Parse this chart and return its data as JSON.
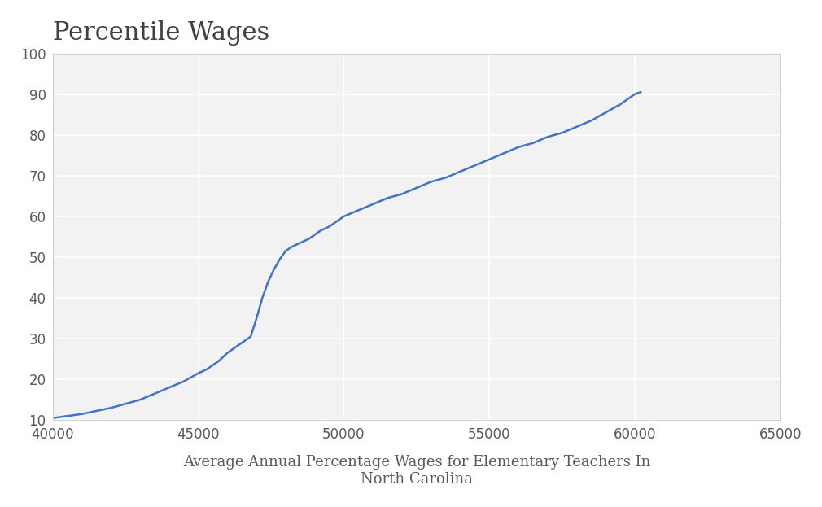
{
  "title": "Percentile Wages",
  "xlabel": "Average Annual Percentage Wages for Elementary Teachers In\nNorth Carolina",
  "ylabel": "",
  "xlim": [
    40000,
    65000
  ],
  "ylim": [
    10,
    100
  ],
  "xticks": [
    40000,
    45000,
    50000,
    55000,
    60000,
    65000
  ],
  "yticks": [
    10,
    20,
    30,
    40,
    50,
    60,
    70,
    80,
    90,
    100
  ],
  "line_color": "#4472c4",
  "plot_background_color": "#f2f2f2",
  "outer_background": "#ffffff",
  "grid_color": "#ffffff",
  "title_fontsize": 22,
  "xlabel_fontsize": 13,
  "tick_fontsize": 12,
  "line_width": 1.8,
  "x_data": [
    40000,
    41000,
    42000,
    43000,
    44000,
    44500,
    45000,
    45300,
    45500,
    45700,
    46000,
    46200,
    46400,
    46600,
    46800,
    47000,
    47200,
    47400,
    47600,
    47800,
    48000,
    48200,
    48500,
    48800,
    49000,
    49200,
    49500,
    50000,
    50500,
    51000,
    51500,
    52000,
    52500,
    53000,
    53500,
    54000,
    54500,
    55000,
    55500,
    56000,
    56500,
    57000,
    57500,
    58000,
    58500,
    59000,
    59500,
    60000,
    60200
  ],
  "y_data": [
    10.5,
    11.5,
    13.0,
    15.0,
    18.0,
    19.5,
    21.5,
    22.5,
    23.5,
    24.5,
    26.5,
    27.5,
    28.5,
    29.5,
    30.5,
    35.0,
    40.0,
    44.0,
    47.0,
    49.5,
    51.5,
    52.5,
    53.5,
    54.5,
    55.5,
    56.5,
    57.5,
    60.0,
    61.5,
    63.0,
    64.5,
    65.5,
    67.0,
    68.5,
    69.5,
    71.0,
    72.5,
    74.0,
    75.5,
    77.0,
    78.0,
    79.5,
    80.5,
    82.0,
    83.5,
    85.5,
    87.5,
    90.0,
    90.5
  ]
}
